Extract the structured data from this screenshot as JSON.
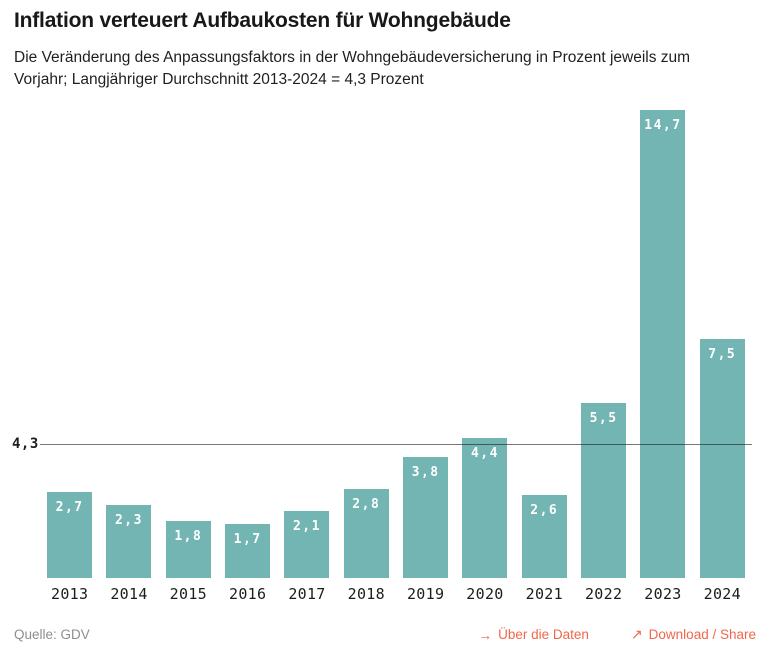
{
  "header": {
    "title": "Inflation verteuert Aufbaukosten für Wohngebäude",
    "subtitle": "Die Veränderung des Anpassungsfaktors in der Wohngebäudeversicherung in Prozent jeweils zum Vorjahr; Langjähriger Durchschnitt 2013-2024 = 4,3 Prozent"
  },
  "chart_data": {
    "type": "bar",
    "title": "Inflation verteuert Aufbaukosten für Wohngebäude",
    "categories": [
      "2013",
      "2014",
      "2015",
      "2016",
      "2017",
      "2018",
      "2019",
      "2020",
      "2021",
      "2022",
      "2023",
      "2024"
    ],
    "values": [
      2.7,
      2.3,
      1.8,
      1.7,
      2.1,
      2.8,
      3.8,
      4.4,
      2.6,
      5.5,
      14.7,
      7.5
    ],
    "value_labels": [
      "2,7",
      "2,3",
      "1,8",
      "1,7",
      "2,1",
      "2,8",
      "3,8",
      "4,4",
      "2,6",
      "5,5",
      "14,7",
      "7,5"
    ],
    "xlabel": "",
    "ylabel": "",
    "ylim": [
      0,
      14.7
    ],
    "grid": false,
    "legend": "none",
    "bar_color": "#73B5B3",
    "value_label_color": "#FFFFFF",
    "reference_line": {
      "value": 4.3,
      "label": "4,3"
    }
  },
  "footer": {
    "source_label": "Quelle: GDV",
    "links": [
      {
        "icon": "→",
        "icon_name": "arrow-right-icon",
        "label": "Über die Daten"
      },
      {
        "icon": "↗",
        "icon_name": "arrow-up-right-icon",
        "label": "Download / Share"
      }
    ],
    "link_color": "#F2674B"
  }
}
